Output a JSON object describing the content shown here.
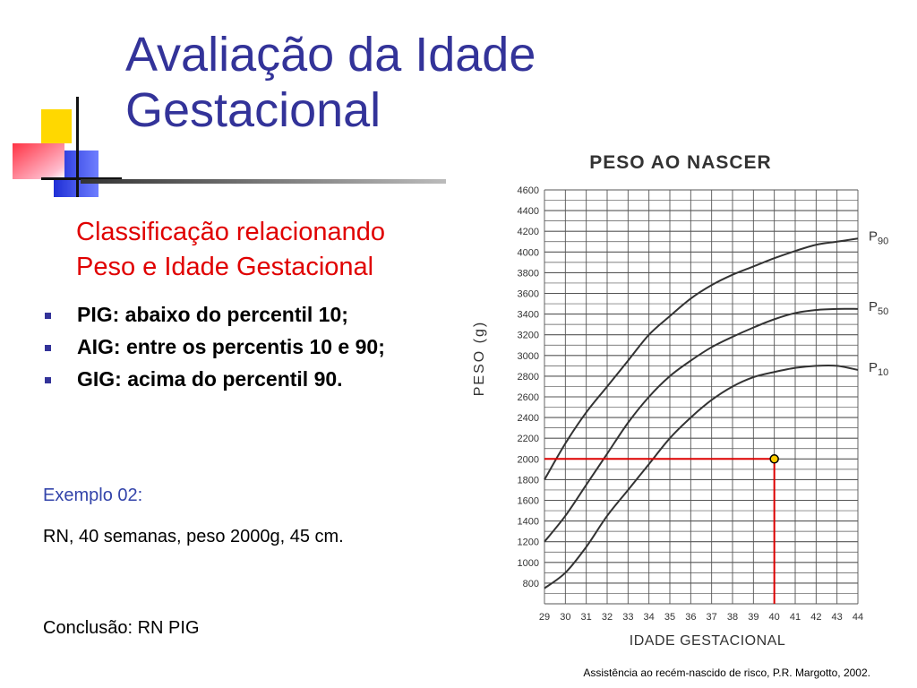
{
  "slide": {
    "title_lines": [
      "Avaliação da Idade",
      "Gestacional"
    ],
    "subtitle_lines": [
      "Classificação relacionando",
      "Peso e Idade Gestacional"
    ],
    "bullets": [
      "PIG: abaixo do percentil 10;",
      "AIG: entre os percentis 10 e 90;",
      "GIG: acima do percentil 90."
    ],
    "example_label": "Exemplo 02:",
    "example_text": "RN, 40 semanas, peso 2000g,  45 cm.",
    "conclusion": "Conclusão: RN PIG",
    "credit": "Assistência ao recém-nascido de risco, P.R. Margotto, 2002.",
    "colors": {
      "title": "#333399",
      "subtitle": "#e00000",
      "marker_line": "#dd0000",
      "marker_dot": "#ffcc00",
      "deco_yellow": "#ffd800",
      "deco_blue": "#1f2fd6",
      "deco_red": "#ff3344"
    }
  },
  "chart_data": {
    "type": "line",
    "title": "PESO AO NASCER",
    "xlabel": "IDADE GESTACIONAL",
    "ylabel": "PESO (g)",
    "xlim": [
      29,
      44
    ],
    "ylim": [
      600,
      4600
    ],
    "x_ticks": [
      29,
      30,
      31,
      32,
      33,
      34,
      35,
      36,
      37,
      38,
      39,
      40,
      41,
      42,
      43,
      44
    ],
    "y_ticks": [
      800,
      1000,
      1200,
      1400,
      1600,
      1800,
      2000,
      2200,
      2400,
      2600,
      2800,
      3000,
      3200,
      3400,
      3600,
      3800,
      4000,
      4200,
      4400,
      4600
    ],
    "grid": true,
    "series": [
      {
        "name": "P90",
        "x": [
          29,
          30,
          31,
          32,
          33,
          34,
          35,
          36,
          37,
          38,
          39,
          40,
          41,
          42,
          43,
          44
        ],
        "y": [
          1800,
          2150,
          2450,
          2700,
          2950,
          3200,
          3380,
          3550,
          3680,
          3780,
          3860,
          3940,
          4010,
          4070,
          4100,
          4130
        ]
      },
      {
        "name": "P50",
        "x": [
          29,
          30,
          31,
          32,
          33,
          34,
          35,
          36,
          37,
          38,
          39,
          40,
          41,
          42,
          43,
          44
        ],
        "y": [
          1200,
          1450,
          1750,
          2050,
          2350,
          2600,
          2800,
          2950,
          3080,
          3180,
          3270,
          3350,
          3410,
          3440,
          3450,
          3450
        ]
      },
      {
        "name": "P10",
        "x": [
          29,
          30,
          31,
          32,
          33,
          34,
          35,
          36,
          37,
          38,
          39,
          40,
          41,
          42,
          43,
          44
        ],
        "y": [
          750,
          900,
          1150,
          1450,
          1700,
          1950,
          2200,
          2400,
          2570,
          2700,
          2790,
          2840,
          2880,
          2900,
          2900,
          2860
        ]
      }
    ],
    "curve_labels": [
      {
        "main": "P",
        "sub": "90"
      },
      {
        "main": "P",
        "sub": "50"
      },
      {
        "main": "P",
        "sub": "10"
      }
    ],
    "marker": {
      "x": 40,
      "y": 2000
    }
  }
}
